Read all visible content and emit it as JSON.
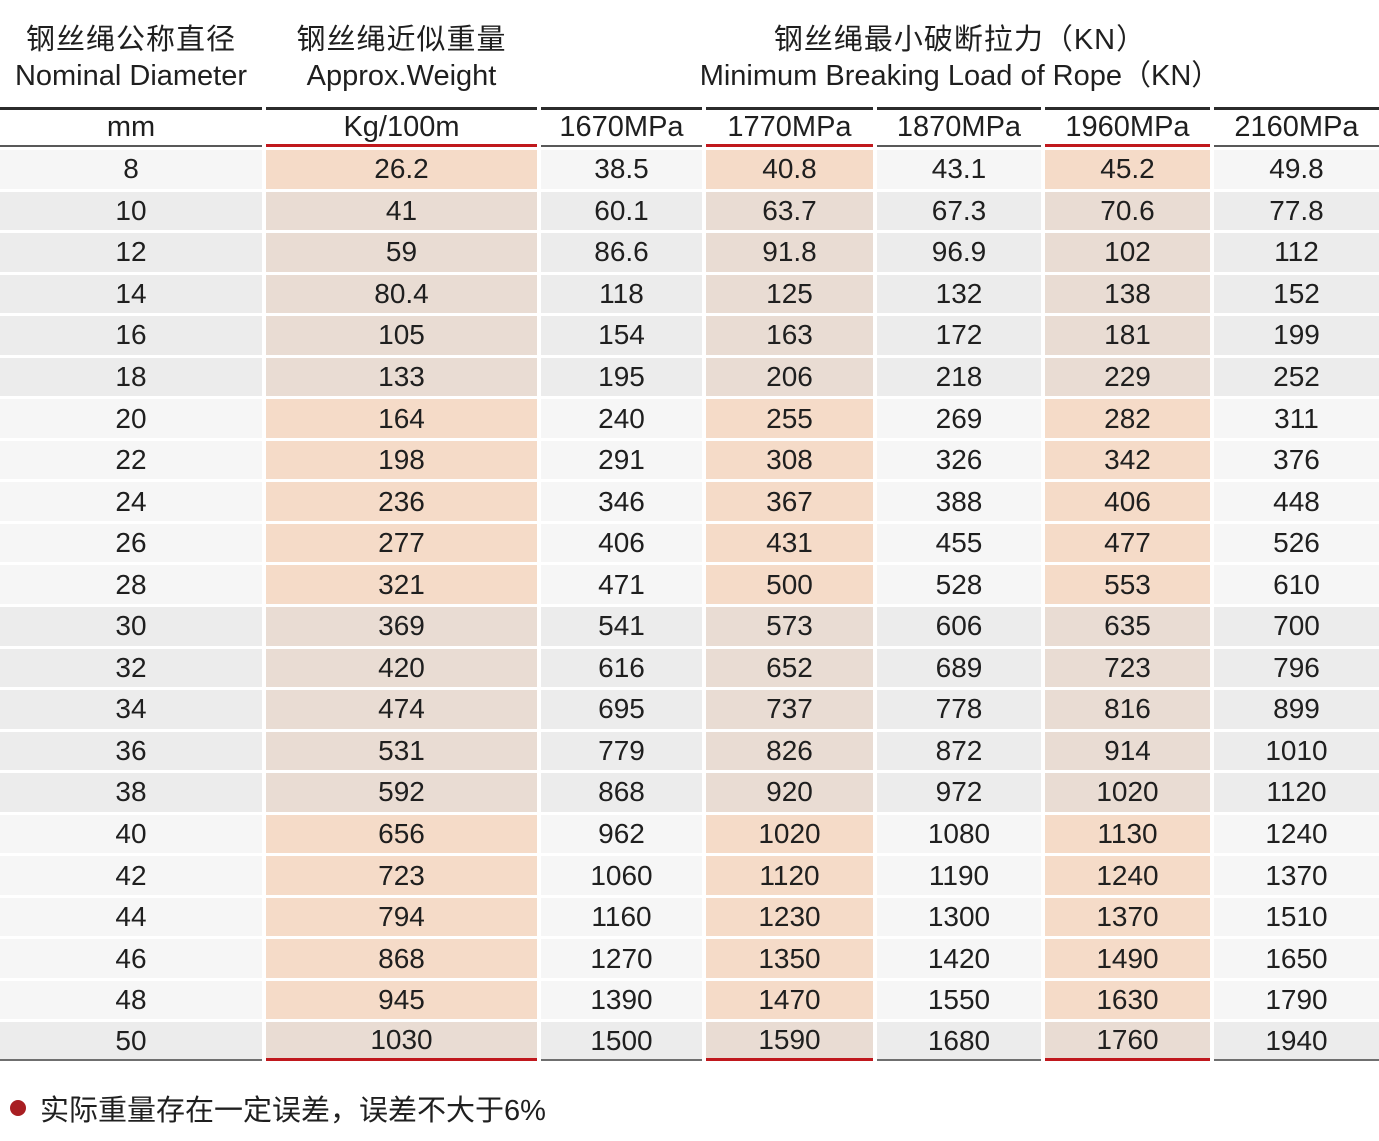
{
  "table": {
    "header_groups": [
      {
        "zh": "钢丝绳公称直径",
        "en": "Nominal Diameter",
        "span": 1
      },
      {
        "zh": "钢丝绳近似重量",
        "en": "Approx.Weight",
        "span": 1
      },
      {
        "zh": "钢丝绳最小破断拉力（KN）",
        "en": "Minimum Breaking Load of Rope（KN）",
        "span": 5
      }
    ],
    "unit_row": [
      "mm",
      "Kg/100m",
      "1670MPa",
      "1770MPa",
      "1870MPa",
      "1960MPa",
      "2160MPa"
    ],
    "highlighted_columns": [
      1,
      3,
      5
    ],
    "rows": [
      {
        "shade": "light",
        "cells": [
          "8",
          "26.2",
          "38.5",
          "40.8",
          "43.1",
          "45.2",
          "49.8"
        ]
      },
      {
        "shade": "gray",
        "cells": [
          "10",
          "41",
          "60.1",
          "63.7",
          "67.3",
          "70.6",
          "77.8"
        ]
      },
      {
        "shade": "gray",
        "cells": [
          "12",
          "59",
          "86.6",
          "91.8",
          "96.9",
          "102",
          "112"
        ]
      },
      {
        "shade": "gray",
        "cells": [
          "14",
          "80.4",
          "118",
          "125",
          "132",
          "138",
          "152"
        ]
      },
      {
        "shade": "gray",
        "cells": [
          "16",
          "105",
          "154",
          "163",
          "172",
          "181",
          "199"
        ]
      },
      {
        "shade": "gray",
        "cells": [
          "18",
          "133",
          "195",
          "206",
          "218",
          "229",
          "252"
        ]
      },
      {
        "shade": "light",
        "cells": [
          "20",
          "164",
          "240",
          "255",
          "269",
          "282",
          "311"
        ]
      },
      {
        "shade": "light",
        "cells": [
          "22",
          "198",
          "291",
          "308",
          "326",
          "342",
          "376"
        ]
      },
      {
        "shade": "light",
        "cells": [
          "24",
          "236",
          "346",
          "367",
          "388",
          "406",
          "448"
        ]
      },
      {
        "shade": "light",
        "cells": [
          "26",
          "277",
          "406",
          "431",
          "455",
          "477",
          "526"
        ]
      },
      {
        "shade": "light",
        "cells": [
          "28",
          "321",
          "471",
          "500",
          "528",
          "553",
          "610"
        ]
      },
      {
        "shade": "gray",
        "cells": [
          "30",
          "369",
          "541",
          "573",
          "606",
          "635",
          "700"
        ]
      },
      {
        "shade": "gray",
        "cells": [
          "32",
          "420",
          "616",
          "652",
          "689",
          "723",
          "796"
        ]
      },
      {
        "shade": "gray",
        "cells": [
          "34",
          "474",
          "695",
          "737",
          "778",
          "816",
          "899"
        ]
      },
      {
        "shade": "gray",
        "cells": [
          "36",
          "531",
          "779",
          "826",
          "872",
          "914",
          "1010"
        ]
      },
      {
        "shade": "gray",
        "cells": [
          "38",
          "592",
          "868",
          "920",
          "972",
          "1020",
          "1120"
        ]
      },
      {
        "shade": "light",
        "cells": [
          "40",
          "656",
          "962",
          "1020",
          "1080",
          "1130",
          "1240"
        ]
      },
      {
        "shade": "light",
        "cells": [
          "42",
          "723",
          "1060",
          "1120",
          "1190",
          "1240",
          "1370"
        ]
      },
      {
        "shade": "light",
        "cells": [
          "44",
          "794",
          "1160",
          "1230",
          "1300",
          "1370",
          "1510"
        ]
      },
      {
        "shade": "light",
        "cells": [
          "46",
          "868",
          "1270",
          "1350",
          "1420",
          "1490",
          "1650"
        ]
      },
      {
        "shade": "light",
        "cells": [
          "48",
          "945",
          "1390",
          "1470",
          "1550",
          "1630",
          "1790"
        ]
      },
      {
        "shade": "gray",
        "cells": [
          "50",
          "1030",
          "1500",
          "1590",
          "1680",
          "1760",
          "1940"
        ]
      }
    ]
  },
  "footnote": {
    "text": "实际重量存在一定误差，误差不大于6%"
  },
  "colors": {
    "accent_red": "#c0181d",
    "bullet_red": "#a81e22",
    "dark_line": "#2b2b2b",
    "gray_line": "#595959",
    "bottom_line": "#6f6f6f",
    "row_light": "#f6f6f6",
    "row_gray": "#ececec",
    "pink_light": "#f5dbc8",
    "pink_gray": "#e9dcd3",
    "text": "#1f1f1f"
  }
}
